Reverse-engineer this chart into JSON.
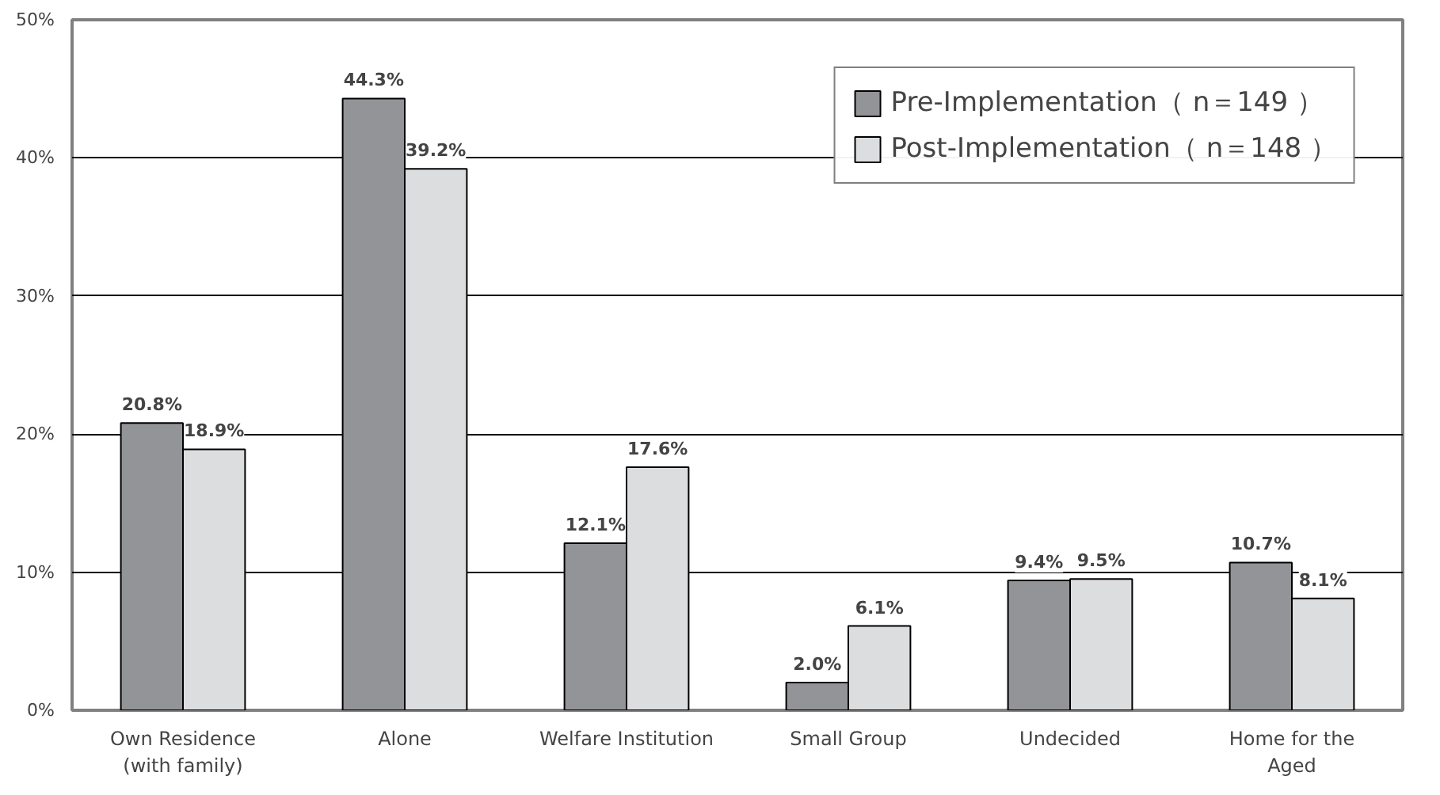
{
  "chart_data": {
    "type": "bar",
    "categories": [
      "Own Residence\n(with family)",
      "Alone",
      "Welfare Institution",
      "Small Group",
      "Undecided",
      "Home for the\nAged"
    ],
    "series": [
      {
        "name": "Pre-Implementation（ n＝149 ）",
        "color": "#939497",
        "values": [
          20.8,
          44.3,
          12.1,
          2.0,
          9.4,
          10.7
        ],
        "value_labels": [
          "20.8%",
          "44.3%",
          "12.1%",
          "2.0%",
          "9.4%",
          "10.7%"
        ]
      },
      {
        "name": "Post-Implementation（ n＝148 ）",
        "color": "#dcdddf",
        "values": [
          18.9,
          39.2,
          17.6,
          6.1,
          9.5,
          8.1
        ],
        "value_labels": [
          "18.9%",
          "39.2%",
          "17.6%",
          "6.1%",
          "9.5%",
          "8.1%"
        ]
      }
    ],
    "ylim": [
      0,
      50
    ],
    "yticks": [
      {
        "value": 0,
        "label": "0%"
      },
      {
        "value": 10,
        "label": "10%"
      },
      {
        "value": 20,
        "label": "20%"
      },
      {
        "value": 30,
        "label": "30%"
      },
      {
        "value": 40,
        "label": "40%"
      },
      {
        "value": 50,
        "label": "50%"
      }
    ],
    "grid": "y",
    "legend": "top right"
  }
}
